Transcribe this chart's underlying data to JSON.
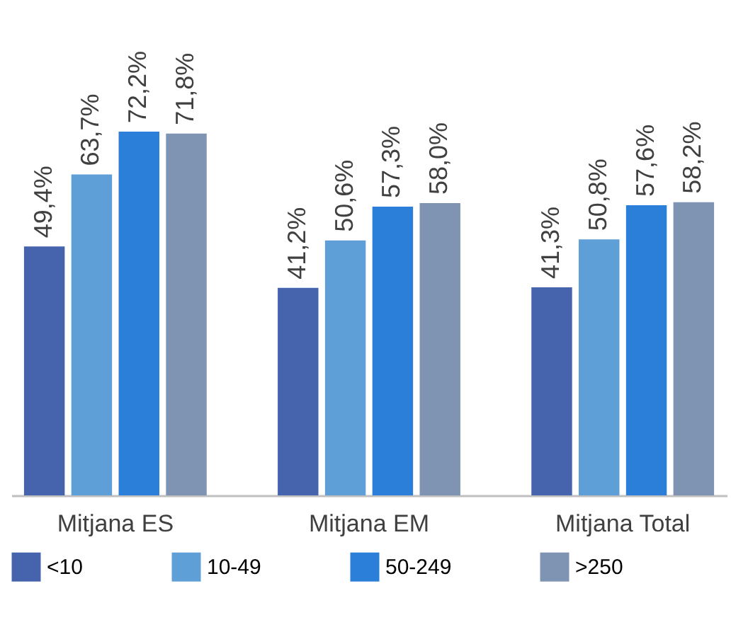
{
  "chart_data": {
    "type": "bar",
    "categories": [
      "Mitjana ES",
      "Mitjana EM",
      "Mitjana Total"
    ],
    "series": [
      {
        "name": "<10",
        "color": "#4664ae",
        "values": [
          49.4,
          41.2,
          41.3
        ],
        "value_labels": [
          "49,4%",
          "41,2%",
          "41,3%"
        ]
      },
      {
        "name": "10-49",
        "color": "#5f9fd8",
        "values": [
          63.7,
          50.6,
          50.8
        ],
        "value_labels": [
          "63,7%",
          "50,6%",
          "50,8%"
        ]
      },
      {
        "name": "50-249",
        "color": "#2c7fd8",
        "values": [
          72.2,
          57.3,
          57.6
        ],
        "value_labels": [
          "72,2%",
          "57,3%",
          "57,6%"
        ]
      },
      {
        "name": ">250",
        "color": "#7f93b2",
        "values": [
          71.8,
          58.0,
          58.2
        ],
        "value_labels": [
          "71,8%",
          "58,0%",
          "58,2%"
        ]
      }
    ],
    "legend": "bottom"
  }
}
